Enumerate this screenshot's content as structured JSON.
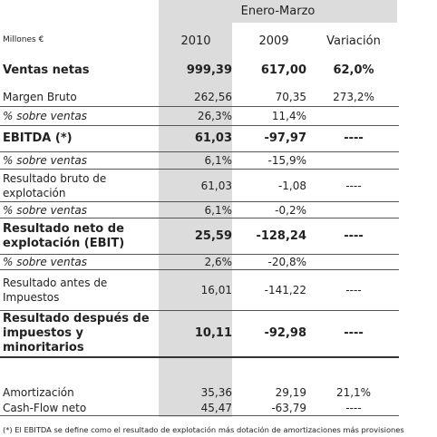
{
  "header": {
    "period": "Enero-Marzo",
    "unit": "Millones €",
    "columns": [
      "2010",
      "2009",
      "Variación"
    ]
  },
  "table": {
    "rows": [
      {
        "label": "Ventas netas",
        "v2010": "999,39",
        "v2009": "617,00",
        "variation": "62,0%",
        "bold": true
      },
      {
        "label": "Margen Bruto",
        "v2010": "262,56",
        "v2009": "70,35",
        "variation": "273,2%"
      },
      {
        "label": "% sobre ventas",
        "v2010": "26,3%",
        "v2009": "11,4%",
        "italic": true
      },
      {
        "label": "EBITDA (*)",
        "v2010": "61,03",
        "v2009": "-97,97",
        "variation": "----",
        "bold": true
      },
      {
        "label": "% sobre ventas",
        "v2010": "6,1%",
        "v2009": "-15,9%",
        "italic": true
      },
      {
        "label": "Resultado bruto de explotación",
        "v2010": "61,03",
        "v2009": "-1,08",
        "variation": "----"
      },
      {
        "label": "% sobre ventas",
        "v2010": "6,1%",
        "v2009": "-0,2%",
        "italic": true
      },
      {
        "label": "Resultado neto de explotación (EBIT)",
        "v2010": "25,59",
        "v2009": "-128,24",
        "variation": "----",
        "bold": true
      },
      {
        "label": "% sobre ventas",
        "v2010": "2,6%",
        "v2009": "-20,8%",
        "italic": true
      },
      {
        "label": "Resultado antes de Impuestos",
        "v2010": "16,01",
        "v2009": "-141,22",
        "variation": "----"
      },
      {
        "label": "Resultado después de impuestos y minoritarios",
        "v2010": "10,11",
        "v2009": "-92,98",
        "variation": "----",
        "bold": true
      },
      {
        "label": "Amortización",
        "v2010": "35,36",
        "v2009": "29,19",
        "variation": "21,1%"
      },
      {
        "label": "Cash-Flow neto",
        "v2010": "45,47",
        "v2009": "-63,79",
        "variation": "----"
      }
    ]
  },
  "footnote": "(*) El EBITDA se define como el resultado de explotación más dotación de amortizaciones más provisiones"
}
